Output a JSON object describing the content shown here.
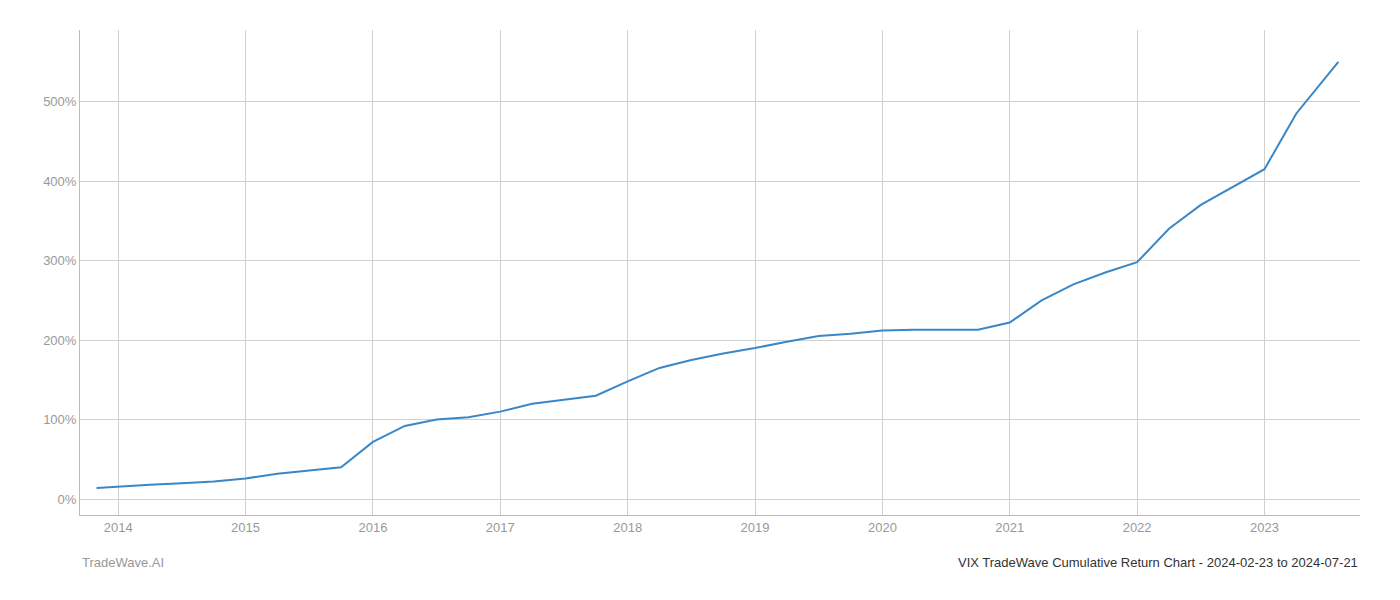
{
  "chart_data": {
    "type": "line",
    "title": "VIX TradeWave Cumulative Return Chart - 2024-02-23 to 2024-07-21",
    "annotations": [
      "TradeWave.AI"
    ],
    "x": [
      2013.83,
      2014.0,
      2014.25,
      2014.5,
      2014.75,
      2015.0,
      2015.25,
      2015.5,
      2015.75,
      2016.0,
      2016.25,
      2016.5,
      2016.75,
      2017.0,
      2017.25,
      2017.5,
      2017.75,
      2018.0,
      2018.25,
      2018.5,
      2018.75,
      2019.0,
      2019.25,
      2019.5,
      2019.75,
      2020.0,
      2020.25,
      2020.5,
      2020.75,
      2021.0,
      2021.25,
      2021.5,
      2021.75,
      2022.0,
      2022.25,
      2022.5,
      2022.75,
      2023.0,
      2023.25,
      2023.5,
      2023.58
    ],
    "values": [
      14,
      16,
      18,
      20,
      22,
      26,
      32,
      36,
      40,
      72,
      92,
      100,
      103,
      110,
      120,
      125,
      130,
      148,
      165,
      175,
      183,
      190,
      198,
      205,
      208,
      212,
      213,
      213,
      213,
      222,
      250,
      270,
      285,
      298,
      340,
      370,
      393,
      415,
      485,
      535,
      550
    ],
    "color": "#3a87c8",
    "xlim": [
      2013.7,
      2023.75
    ],
    "xticks": [
      2014,
      2015,
      2016,
      2017,
      2018,
      2019,
      2020,
      2021,
      2022,
      2023
    ],
    "ylim": [
      -20,
      590
    ],
    "yticks": [
      {
        "value": 0,
        "label": "0%"
      },
      {
        "value": 100,
        "label": "100%"
      },
      {
        "value": 200,
        "label": "200%"
      },
      {
        "value": 300,
        "label": "300%"
      },
      {
        "value": 400,
        "label": "400%"
      },
      {
        "value": 500,
        "label": "500%"
      }
    ],
    "grid": true
  }
}
